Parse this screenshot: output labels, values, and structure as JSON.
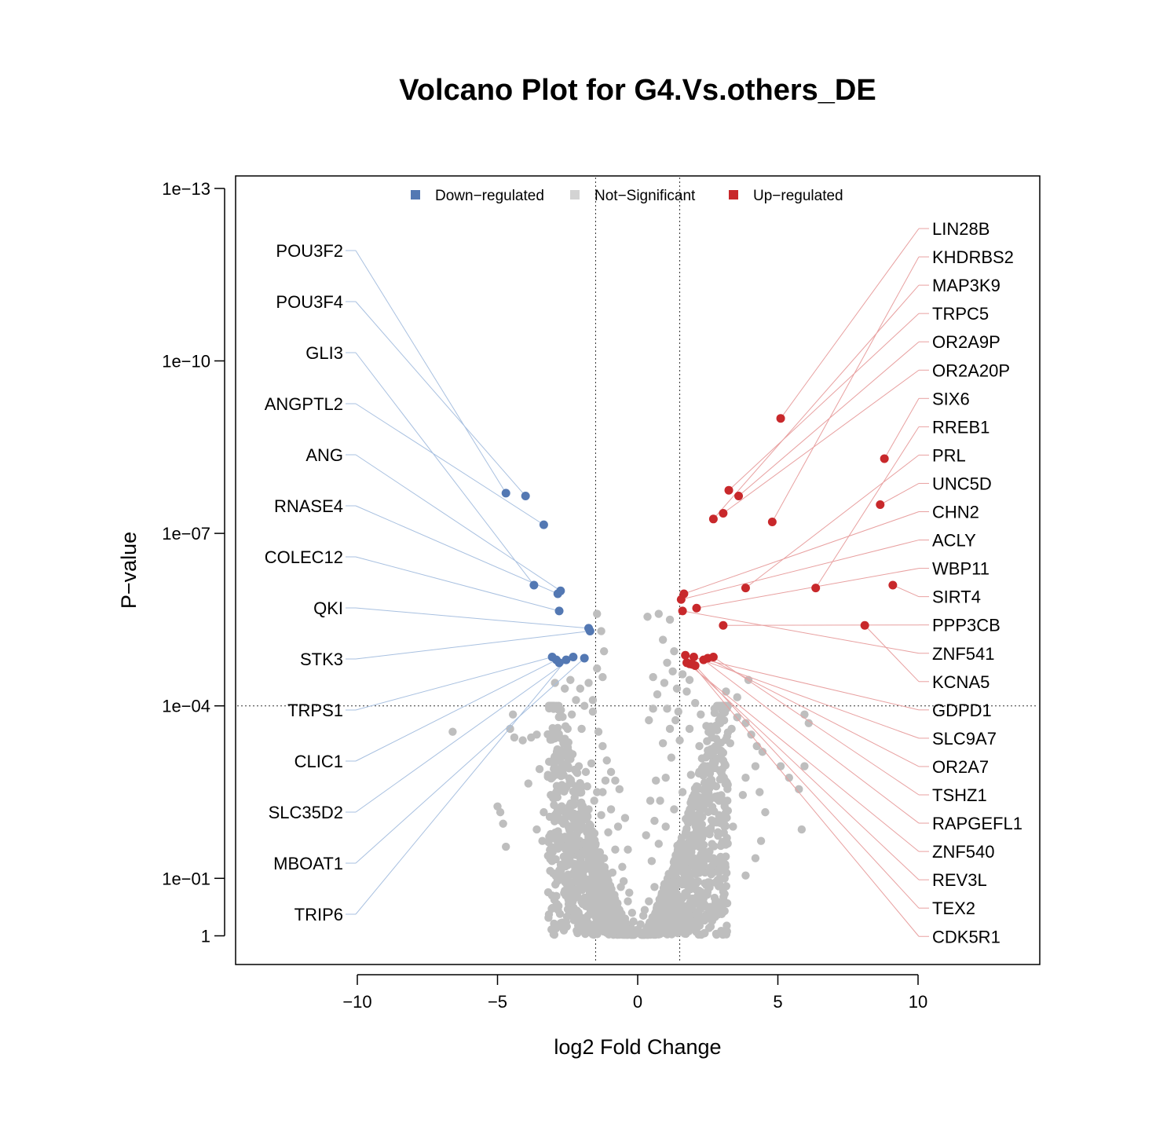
{
  "chart_data": {
    "type": "scatter",
    "title": "Volcano Plot for G4.Vs.others_DE",
    "xlabel": "log2 Fold Change",
    "ylabel": "P−value",
    "x_ticks": [
      -10,
      -5,
      0,
      5,
      10
    ],
    "x_tick_labels": [
      "−10",
      "−5",
      "0",
      "5",
      "10"
    ],
    "y_scale": "-log10",
    "y_ticks": [
      1,
      0.1,
      0.0001,
      1e-07,
      1e-10,
      1e-13
    ],
    "y_tick_labels": [
      "1",
      "1e−01",
      "1e−04",
      "1e−07",
      "1e−10",
      "1e−13"
    ],
    "xlim": [
      -14.3,
      14.3
    ],
    "ylim_neglog10": [
      -0.5,
      13.2
    ],
    "thresholds": {
      "log2fc": 1.5,
      "pvalue": 0.0001
    },
    "grid": false,
    "legend_position": "top",
    "colors": {
      "down": "#5378b3",
      "ns": "#bebebe",
      "up": "#c8282b",
      "down_line": "#a8c0e0",
      "up_line": "#e8a0a0"
    },
    "legend": [
      {
        "key": "down",
        "label": "Down−regulated"
      },
      {
        "key": "ns",
        "label": "Not−Significant"
      },
      {
        "key": "up",
        "label": "Up−regulated"
      }
    ],
    "series": [
      {
        "name": "Down−regulated",
        "key": "down",
        "points": [
          [
            -4.7,
            7.7
          ],
          [
            -4.0,
            7.65
          ],
          [
            -3.35,
            7.15
          ],
          [
            -3.7,
            6.1
          ],
          [
            -2.75,
            6.0
          ],
          [
            -2.85,
            5.95
          ],
          [
            -2.8,
            5.65
          ],
          [
            -1.75,
            5.35
          ],
          [
            -1.7,
            5.3
          ],
          [
            -3.05,
            4.85
          ],
          [
            -2.9,
            4.8
          ],
          [
            -2.3,
            4.85
          ],
          [
            -1.9,
            4.83
          ],
          [
            -2.55,
            4.8
          ],
          [
            -2.8,
            4.75
          ]
        ]
      },
      {
        "name": "Up−regulated",
        "key": "up",
        "points": [
          [
            5.1,
            9.0
          ],
          [
            8.8,
            8.3
          ],
          [
            2.7,
            7.25
          ],
          [
            4.8,
            7.2
          ],
          [
            3.25,
            7.75
          ],
          [
            3.6,
            7.65
          ],
          [
            3.05,
            7.35
          ],
          [
            8.65,
            7.5
          ],
          [
            9.1,
            6.1
          ],
          [
            6.35,
            6.05
          ],
          [
            3.85,
            6.05
          ],
          [
            1.65,
            5.95
          ],
          [
            1.55,
            5.85
          ],
          [
            2.1,
            5.7
          ],
          [
            1.6,
            5.65
          ],
          [
            3.05,
            5.4
          ],
          [
            8.1,
            5.4
          ],
          [
            1.7,
            4.88
          ],
          [
            2.0,
            4.85
          ],
          [
            2.5,
            4.83
          ],
          [
            2.7,
            4.85
          ],
          [
            2.35,
            4.8
          ],
          [
            1.75,
            4.75
          ],
          [
            1.85,
            4.73
          ],
          [
            2.05,
            4.7
          ],
          [
            1.95,
            4.72
          ]
        ]
      }
    ],
    "gene_labels_left": [
      "POU3F2",
      "POU3F4",
      "GLI3",
      "ANGPTL2",
      "ANG",
      "RNASE4",
      "COLEC12",
      "QKI",
      "STK3",
      "TRPS1",
      "CLIC1",
      "SLC35D2",
      "MBOAT1",
      "TRIP6"
    ],
    "gene_labels_right": [
      "LIN28B",
      "KHDRBS2",
      "MAP3K9",
      "TRPC5",
      "OR2A9P",
      "OR2A20P",
      "SIX6",
      "RREB1",
      "PRL",
      "UNC5D",
      "CHN2",
      "ACLY",
      "WBP11",
      "SIRT4",
      "PPP3CB",
      "ZNF541",
      "KCNA5",
      "GDPD1",
      "SLC9A7",
      "OR2A7",
      "TSHZ1",
      "RAPGEFL1",
      "ZNF540",
      "REV3L",
      "TEX2",
      "CDK5R1"
    ],
    "label_links_left": [
      [
        -4.7,
        7.7
      ],
      [
        -4.0,
        7.65
      ],
      [
        -3.7,
        6.1
      ],
      [
        -3.35,
        7.15
      ],
      [
        -2.75,
        6.0
      ],
      [
        -2.85,
        5.95
      ],
      [
        -2.8,
        5.65
      ],
      [
        -1.75,
        5.35
      ],
      [
        -1.7,
        5.3
      ],
      [
        -3.05,
        4.85
      ],
      [
        -2.9,
        4.8
      ],
      [
        -2.3,
        4.85
      ],
      [
        -1.9,
        4.83
      ],
      [
        -2.55,
        4.8
      ]
    ],
    "label_links_right": [
      [
        5.1,
        9.0
      ],
      [
        4.8,
        7.2
      ],
      [
        2.7,
        7.25
      ],
      [
        3.25,
        7.75
      ],
      [
        3.6,
        7.65
      ],
      [
        3.05,
        7.35
      ],
      [
        8.8,
        8.3
      ],
      [
        6.35,
        6.05
      ],
      [
        3.85,
        6.05
      ],
      [
        8.65,
        7.5
      ],
      [
        1.65,
        5.95
      ],
      [
        1.55,
        5.85
      ],
      [
        2.1,
        5.7
      ],
      [
        9.1,
        6.1
      ],
      [
        3.05,
        5.4
      ],
      [
        1.6,
        5.65
      ],
      [
        8.1,
        5.4
      ],
      [
        1.7,
        4.88
      ],
      [
        2.0,
        4.85
      ],
      [
        2.5,
        4.83
      ],
      [
        2.7,
        4.85
      ],
      [
        2.35,
        4.8
      ],
      [
        1.75,
        4.75
      ],
      [
        1.85,
        4.73
      ],
      [
        2.05,
        4.7
      ],
      [
        1.95,
        4.72
      ]
    ],
    "not_significant_points": [
      [
        -6.6,
        3.55
      ],
      [
        -4.45,
        3.85
      ],
      [
        -4.55,
        3.6
      ],
      [
        -4.9,
        2.15
      ],
      [
        -5.0,
        2.25
      ],
      [
        -4.8,
        1.95
      ],
      [
        -4.7,
        1.55
      ],
      [
        -4.4,
        3.45
      ],
      [
        -4.1,
        3.4
      ],
      [
        -3.8,
        3.45
      ],
      [
        -3.6,
        3.5
      ],
      [
        -3.5,
        2.9
      ],
      [
        -3.2,
        2.8
      ],
      [
        -3.9,
        2.65
      ],
      [
        -3.35,
        2.15
      ],
      [
        -3.1,
        2.45
      ],
      [
        -3.4,
        1.65
      ],
      [
        -3.1,
        1.35
      ],
      [
        -3.6,
        1.85
      ],
      [
        -2.95,
        2.1
      ],
      [
        -2.8,
        3.05
      ],
      [
        -2.65,
        3.35
      ],
      [
        -2.5,
        3.6
      ],
      [
        -2.35,
        3.85
      ],
      [
        -2.2,
        4.1
      ],
      [
        -2.05,
        4.3
      ],
      [
        -2.4,
        4.45
      ],
      [
        -2.6,
        4.3
      ],
      [
        -2.95,
        4.4
      ],
      [
        -1.9,
        4.0
      ],
      [
        -1.75,
        4.4
      ],
      [
        -1.45,
        5.6
      ],
      [
        -1.3,
        5.3
      ],
      [
        -1.2,
        4.95
      ],
      [
        -1.25,
        4.5
      ],
      [
        -1.45,
        4.65
      ],
      [
        -1.6,
        3.9
      ],
      [
        -1.4,
        3.55
      ],
      [
        -1.25,
        3.3
      ],
      [
        -1.1,
        3.05
      ],
      [
        -0.95,
        2.85
      ],
      [
        -0.8,
        2.7
      ],
      [
        -0.65,
        2.55
      ],
      [
        -1.65,
        3.0
      ],
      [
        -1.85,
        2.85
      ],
      [
        -2.05,
        2.65
      ],
      [
        -2.25,
        2.4
      ],
      [
        -2.45,
        2.2
      ],
      [
        -2.65,
        1.95
      ],
      [
        -2.3,
        1.65
      ],
      [
        -2.0,
        1.45
      ],
      [
        -1.7,
        1.25
      ],
      [
        -1.4,
        1.05
      ],
      [
        -1.15,
        0.85
      ],
      [
        -0.9,
        0.65
      ],
      [
        -0.65,
        0.45
      ],
      [
        -0.45,
        0.3
      ],
      [
        -0.25,
        0.15
      ],
      [
        -0.1,
        0.05
      ],
      [
        0.35,
        5.55
      ],
      [
        0.75,
        5.6
      ],
      [
        1.15,
        5.5
      ],
      [
        0.9,
        5.15
      ],
      [
        1.3,
        4.95
      ],
      [
        1.05,
        4.75
      ],
      [
        1.25,
        4.6
      ],
      [
        1.6,
        4.55
      ],
      [
        1.85,
        4.45
      ],
      [
        0.55,
        3.95
      ],
      [
        0.4,
        3.75
      ],
      [
        0.7,
        4.2
      ],
      [
        1.05,
        3.95
      ],
      [
        1.35,
        3.75
      ],
      [
        1.75,
        4.25
      ],
      [
        2.05,
        4.05
      ],
      [
        2.25,
        3.85
      ],
      [
        2.45,
        3.65
      ],
      [
        2.65,
        3.45
      ],
      [
        2.85,
        3.25
      ],
      [
        3.05,
        3.05
      ],
      [
        3.35,
        3.6
      ],
      [
        3.55,
        3.8
      ],
      [
        3.85,
        3.7
      ],
      [
        4.05,
        3.5
      ],
      [
        4.25,
        3.3
      ],
      [
        3.95,
        4.45
      ],
      [
        3.55,
        4.15
      ],
      [
        3.15,
        4.25
      ],
      [
        3.85,
        2.75
      ],
      [
        3.75,
        2.45
      ],
      [
        4.2,
        2.95
      ],
      [
        4.45,
        3.2
      ],
      [
        4.35,
        2.5
      ],
      [
        4.55,
        2.15
      ],
      [
        4.4,
        1.65
      ],
      [
        4.2,
        1.35
      ],
      [
        3.85,
        1.05
      ],
      [
        5.95,
        3.85
      ],
      [
        6.1,
        3.7
      ],
      [
        5.4,
        2.75
      ],
      [
        5.1,
        2.95
      ],
      [
        5.75,
        2.55
      ],
      [
        5.95,
        2.95
      ],
      [
        5.85,
        1.85
      ],
      [
        2.4,
        1.1
      ],
      [
        2.05,
        0.9
      ],
      [
        1.75,
        0.7
      ],
      [
        1.45,
        0.55
      ],
      [
        1.15,
        0.4
      ],
      [
        0.85,
        0.25
      ],
      [
        0.55,
        0.12
      ],
      [
        0.3,
        0.05
      ],
      [
        0.15,
        0.02
      ],
      [
        0.6,
        2.0
      ],
      [
        0.8,
        2.35
      ],
      [
        1.0,
        2.75
      ],
      [
        1.2,
        3.1
      ],
      [
        1.5,
        3.4
      ],
      [
        1.85,
        3.6
      ],
      [
        2.2,
        3.3
      ],
      [
        2.5,
        2.95
      ],
      [
        2.8,
        2.6
      ],
      [
        3.1,
        2.25
      ],
      [
        3.4,
        1.9
      ],
      [
        3.0,
        1.6
      ],
      [
        2.7,
        1.35
      ],
      [
        0.5,
        1.3
      ],
      [
        0.75,
        1.6
      ],
      [
        1.0,
        1.9
      ],
      [
        1.3,
        2.2
      ],
      [
        1.6,
        2.5
      ],
      [
        1.9,
        2.8
      ],
      [
        2.2,
        2.05
      ],
      [
        1.85,
        1.75
      ],
      [
        1.55,
        1.45
      ],
      [
        1.25,
        1.15
      ],
      [
        0.95,
        0.9
      ],
      [
        -0.55,
        1.2
      ],
      [
        -0.8,
        1.5
      ],
      [
        -1.05,
        1.8
      ],
      [
        -1.3,
        2.1
      ],
      [
        -1.55,
        2.35
      ],
      [
        -1.8,
        2.6
      ],
      [
        -2.1,
        2.95
      ],
      [
        -2.45,
        3.2
      ],
      [
        -0.7,
        1.9
      ],
      [
        -0.95,
        2.2
      ],
      [
        -1.25,
        2.5
      ],
      [
        -1.5,
        1.6
      ],
      [
        -1.2,
        1.35
      ],
      [
        -0.9,
        1.1
      ],
      [
        -0.6,
        0.85
      ],
      [
        -0.35,
        0.6
      ],
      [
        -0.2,
        0.4
      ],
      [
        0.2,
        0.35
      ],
      [
        0.4,
        0.6
      ],
      [
        0.6,
        0.85
      ],
      [
        -1.95,
        1.05
      ],
      [
        -2.25,
        1.25
      ],
      [
        -2.55,
        1.5
      ],
      [
        -2.9,
        1.75
      ],
      [
        -2.05,
        1.95
      ],
      [
        -1.75,
        2.2
      ],
      [
        -1.45,
        2.5
      ],
      [
        -1.15,
        2.7
      ],
      [
        0.9,
        3.35
      ],
      [
        1.15,
        3.6
      ],
      [
        1.45,
        3.9
      ],
      [
        0.65,
        2.7
      ],
      [
        0.45,
        2.35
      ],
      [
        0.3,
        1.75
      ],
      [
        -0.35,
        1.5
      ],
      [
        -0.45,
        2.05
      ],
      [
        1.7,
        1.15
      ],
      [
        2.0,
        1.35
      ],
      [
        2.3,
        1.6
      ],
      [
        2.6,
        1.85
      ],
      [
        2.9,
        2.1
      ],
      [
        3.2,
        2.35
      ],
      [
        2.1,
        2.6
      ],
      [
        2.4,
        2.35
      ],
      [
        -1.6,
        4.1
      ],
      [
        -2.0,
        3.6
      ],
      [
        -2.7,
        2.6
      ],
      [
        1.4,
        4.3
      ],
      [
        0.95,
        4.4
      ],
      [
        2.9,
        3.75
      ],
      [
        3.3,
        3.35
      ],
      [
        0.55,
        4.5
      ],
      [
        -0.5,
        0.95
      ],
      [
        -0.3,
        0.75
      ],
      [
        0.1,
        0.2
      ],
      [
        -0.05,
        0.1
      ],
      [
        0.05,
        0.08
      ],
      [
        -0.15,
        0.25
      ],
      [
        0.25,
        0.45
      ]
    ]
  }
}
